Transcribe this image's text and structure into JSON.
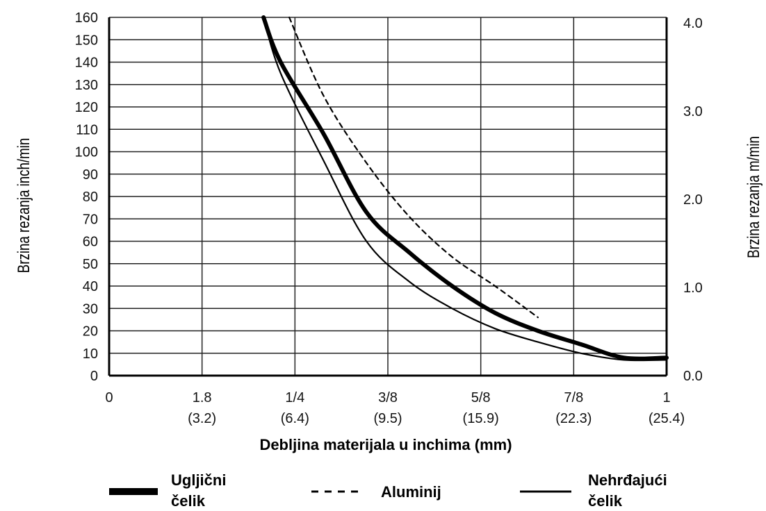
{
  "chart_data": {
    "type": "line",
    "xlabel": "Debljina materijala u inchima (mm)",
    "ylabel_left": "Brzina rezanja inch/min",
    "ylabel_right": "Brzina rezanja m/min",
    "x_ticks": [
      {
        "top": "0",
        "bottom": ""
      },
      {
        "top": "1.8",
        "bottom": "(3.2)"
      },
      {
        "top": "1/4",
        "bottom": "(6.4)"
      },
      {
        "top": "3/8",
        "bottom": "(9.5)"
      },
      {
        "top": "5/8",
        "bottom": "(15.9)"
      },
      {
        "top": "7/8",
        "bottom": "(22.3)"
      },
      {
        "top": "1",
        "bottom": "(25.4)"
      }
    ],
    "y_left_ticks": [
      "0",
      "10",
      "20",
      "30",
      "40",
      "50",
      "60",
      "70",
      "80",
      "90",
      "100",
      "110",
      "120",
      "130",
      "140",
      "150",
      "160"
    ],
    "y_right_ticks": [
      "0.0",
      "1.0",
      "2.0",
      "3.0",
      "4.0"
    ],
    "ylim": [
      0,
      160
    ],
    "grid": true,
    "legend_position": "bottom",
    "series": [
      {
        "name": "Ugljični čelik",
        "style": "thick",
        "points": [
          [
            1.8,
            160
          ],
          [
            2,
            140
          ],
          [
            2.5,
            108
          ],
          [
            3,
            73
          ],
          [
            3.5,
            55
          ],
          [
            4,
            40
          ],
          [
            4.5,
            28
          ],
          [
            5,
            20
          ],
          [
            5.5,
            14
          ],
          [
            6,
            8
          ],
          [
            6.5,
            8
          ]
        ]
      },
      {
        "name": "Aluminij",
        "style": "dashed",
        "points": [
          [
            2.1,
            160
          ],
          [
            2.5,
            125
          ],
          [
            3,
            95
          ],
          [
            3.5,
            71
          ],
          [
            4,
            53
          ],
          [
            4.5,
            40
          ],
          [
            5,
            26
          ]
        ]
      },
      {
        "name": "Nehrđajući čelik",
        "style": "thin",
        "points": [
          [
            1.8,
            160
          ],
          [
            2,
            135
          ],
          [
            2.5,
            96
          ],
          [
            3,
            60
          ],
          [
            3.5,
            42
          ],
          [
            4,
            30
          ],
          [
            4.5,
            21
          ],
          [
            5,
            15
          ],
          [
            5.5,
            10
          ],
          [
            6,
            7
          ],
          [
            6.5,
            7
          ]
        ]
      }
    ]
  },
  "legend": [
    {
      "line1": "Ugljični",
      "line2": "čelik"
    },
    {
      "line1": "Aluminij",
      "line2": ""
    },
    {
      "line1": "Nehrđajući",
      "line2": "čelik"
    }
  ]
}
